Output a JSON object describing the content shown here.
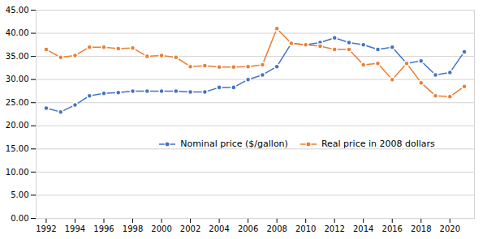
{
  "chart_data": {
    "type": "line",
    "x": [
      1992,
      1993,
      1994,
      1995,
      1996,
      1997,
      1998,
      1999,
      2000,
      2001,
      2002,
      2003,
      2004,
      2005,
      2006,
      2007,
      2008,
      2009,
      2010,
      2011,
      2012,
      2013,
      2014,
      2015,
      2016,
      2017,
      2018,
      2019,
      2020,
      2021
    ],
    "series": [
      {
        "name": "Nominal price ($/gallon)",
        "color": "#4472C4",
        "values": [
          23.8,
          23.0,
          24.5,
          26.5,
          27.0,
          27.2,
          27.5,
          27.5,
          27.5,
          27.5,
          27.3,
          27.3,
          28.3,
          28.3,
          30.0,
          31.0,
          32.8,
          37.8,
          37.5,
          38.0,
          39.0,
          38.0,
          37.5,
          36.5,
          37.0,
          33.5,
          34.0,
          31.0,
          31.5,
          36.0
        ]
      },
      {
        "name": "Real price in 2008 dollars",
        "color": "#ED7D31",
        "values": [
          36.5,
          34.8,
          35.2,
          37.0,
          37.0,
          36.7,
          36.8,
          35.0,
          35.2,
          34.8,
          32.8,
          33.0,
          32.7,
          32.7,
          32.8,
          33.2,
          41.0,
          37.8,
          37.5,
          37.2,
          36.5,
          36.5,
          33.2,
          33.5,
          30.0,
          33.5,
          29.3,
          26.5,
          26.3,
          28.5
        ]
      }
    ],
    "xlim": [
      1991.3,
      2021.7
    ],
    "xticks": [
      1992,
      1994,
      1996,
      1998,
      2000,
      2002,
      2004,
      2006,
      2008,
      2010,
      2012,
      2014,
      2016,
      2018,
      2020
    ],
    "ylim": [
      0,
      45
    ],
    "yticks": [
      {
        "value": 0,
        "label": "0.00"
      },
      {
        "value": 5,
        "label": "5.00"
      },
      {
        "value": 10,
        "label": "10.00"
      },
      {
        "value": 15,
        "label": "15.00"
      },
      {
        "value": 20,
        "label": "20.00"
      },
      {
        "value": 25,
        "label": "25.00"
      },
      {
        "value": 30,
        "label": "30.00"
      },
      {
        "value": 35,
        "label": "35.00"
      },
      {
        "value": 40,
        "label": "40.00"
      },
      {
        "value": 45,
        "label": "45.00"
      }
    ],
    "grid": true,
    "legend": "lower center",
    "marker": "circle"
  }
}
